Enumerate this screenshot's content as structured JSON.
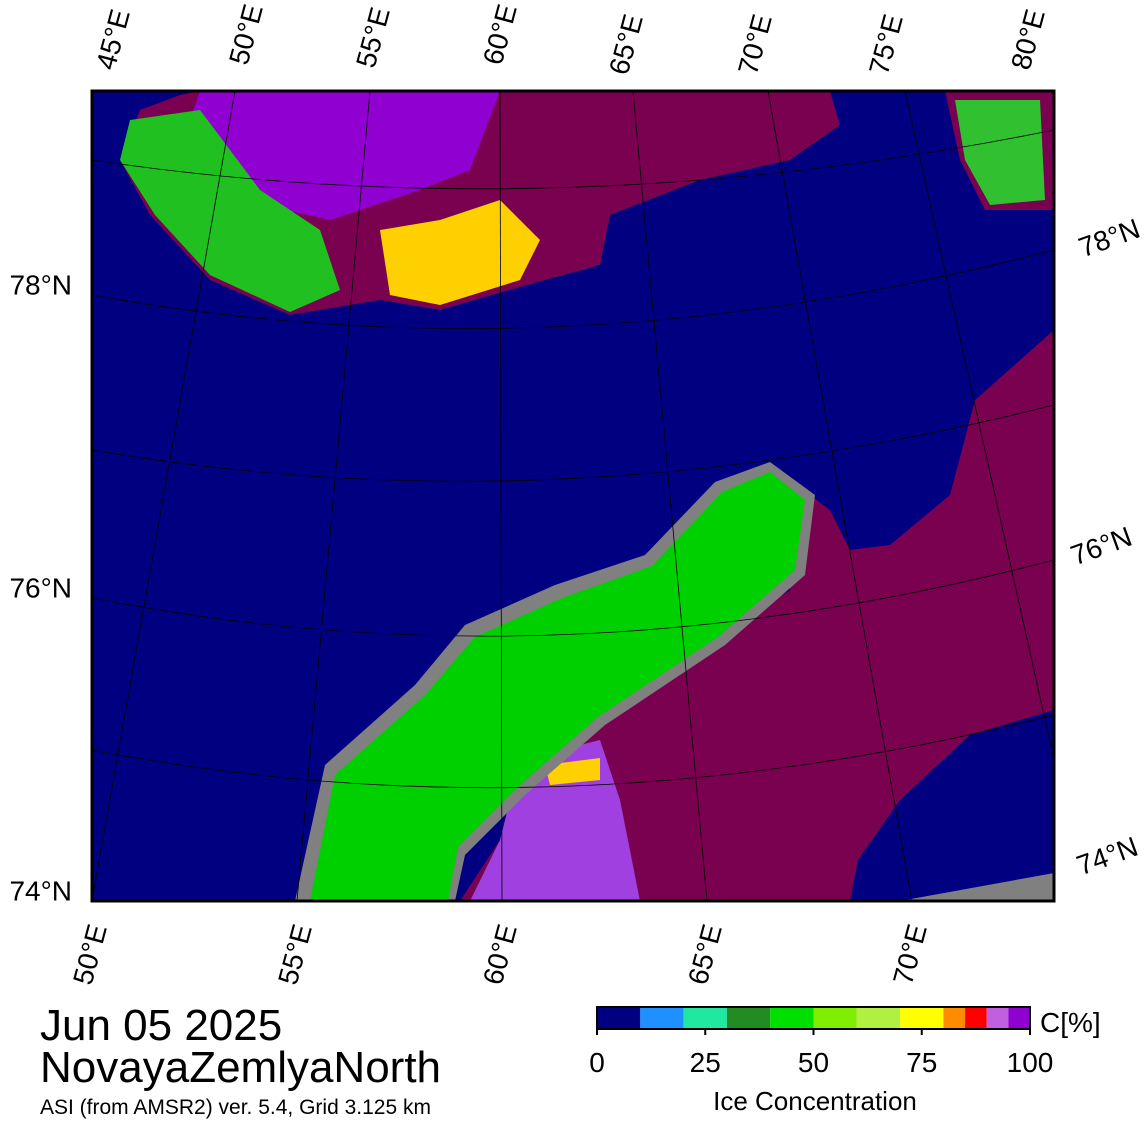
{
  "map": {
    "top_labels": [
      "45°E",
      "50°E",
      "55°E",
      "60°E",
      "65°E",
      "70°E",
      "75°E",
      "80°E"
    ],
    "left_labels": [
      "78°N",
      "76°N",
      "74°N"
    ],
    "right_labels": [
      "78°N",
      "76°N",
      "74°N"
    ],
    "bottom_labels": [
      "50°E",
      "55°E",
      "60°E",
      "65°E",
      "70°E"
    ]
  },
  "caption": {
    "date": "Jun 05 2025",
    "region": "NovayaZemlyaNorth",
    "source": "ASI (from AMSR2) ver. 5.4,  Grid 3.125 km"
  },
  "colorbar": {
    "range": [
      0,
      100
    ],
    "ticks": [
      0,
      25,
      50,
      75,
      100
    ],
    "unit": "C[%]",
    "label": "Ice Concentration",
    "bins": [
      0,
      10,
      20,
      30,
      40,
      50,
      60,
      70,
      80,
      85,
      90,
      95,
      100
    ],
    "colors": [
      "#000080",
      "#1e90ff",
      "#20e8a0",
      "#228b22",
      "#00e000",
      "#80ee00",
      "#b0f040",
      "#ffff00",
      "#ff8c00",
      "#ff0000",
      "#c060e0",
      "#9000d0"
    ]
  }
}
